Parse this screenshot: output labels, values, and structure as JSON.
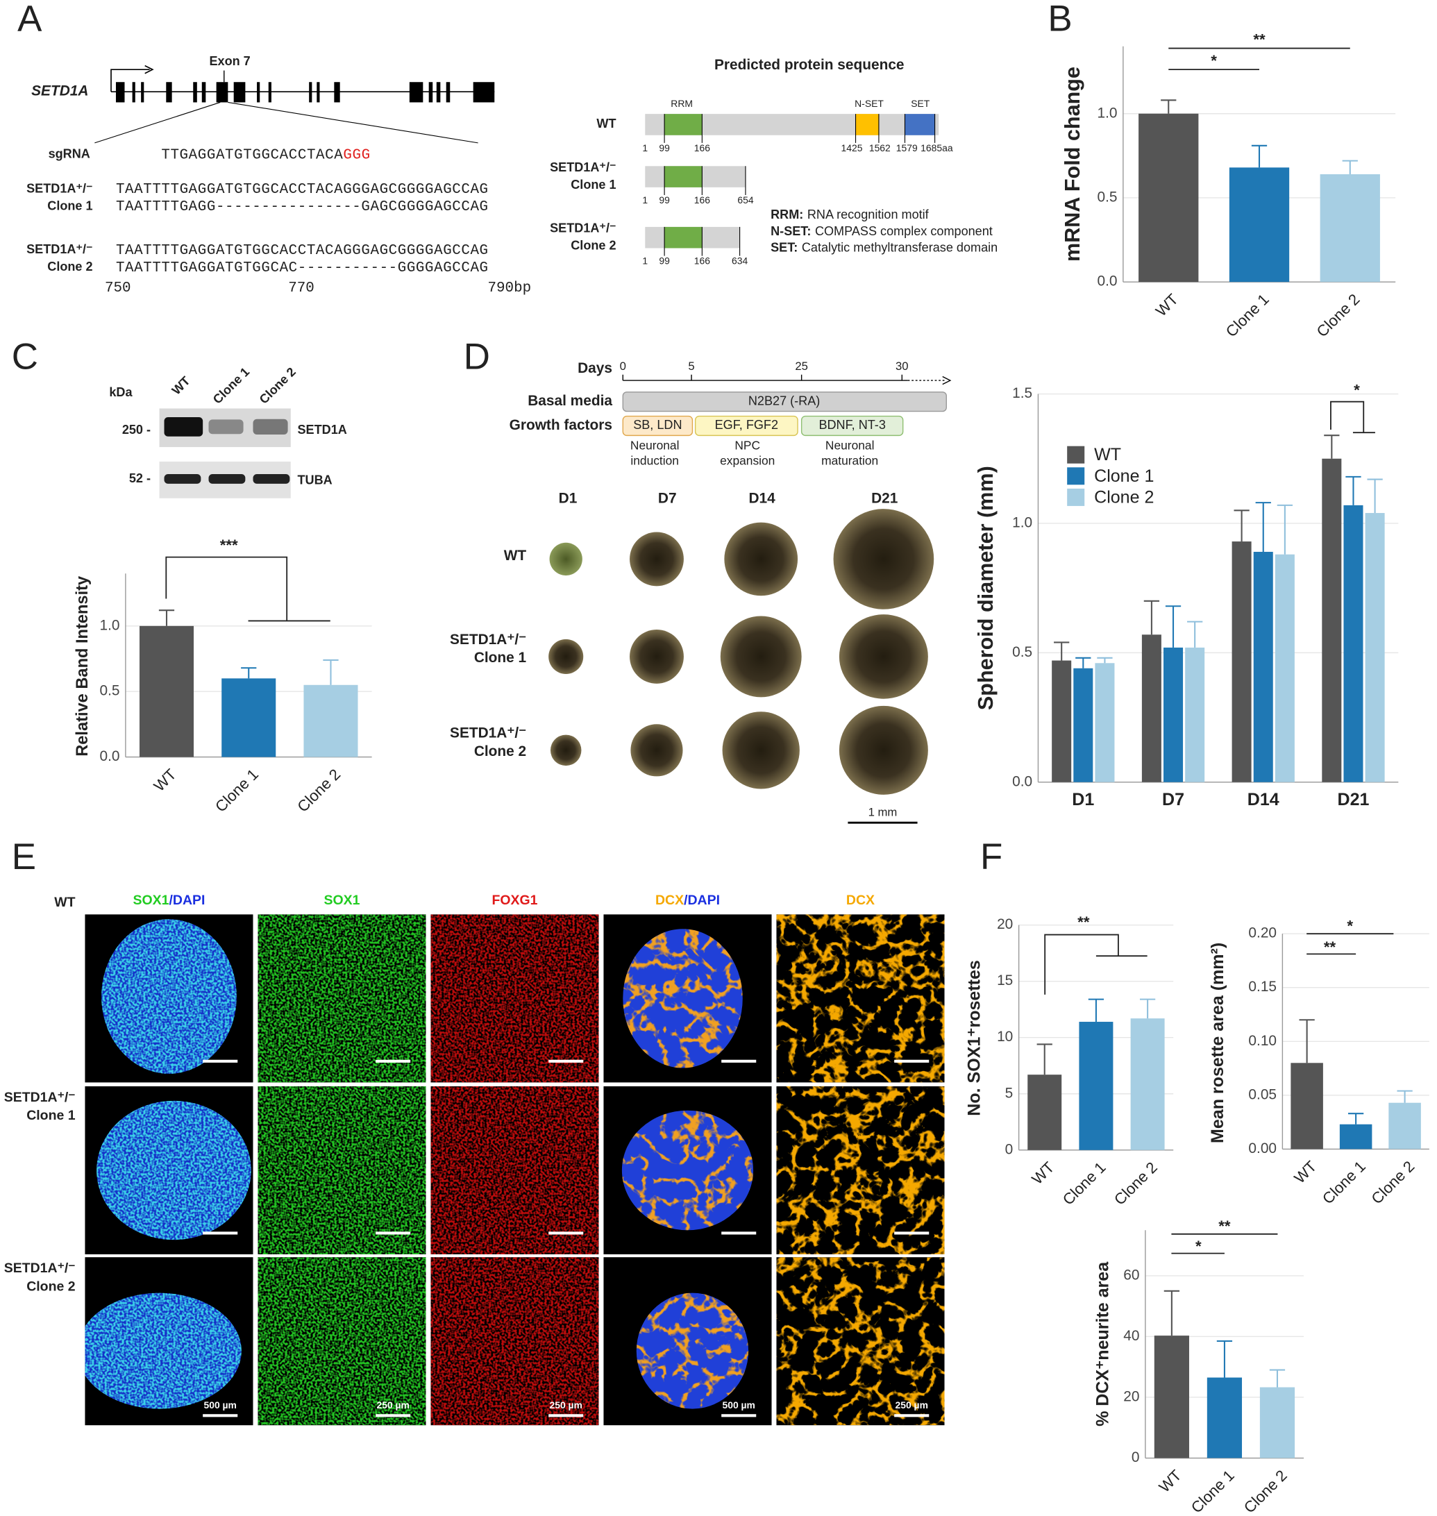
{
  "panel_labels": [
    "A",
    "B",
    "C",
    "D",
    "E",
    "F"
  ],
  "panel_a": {
    "gene": "SETD1A",
    "exon_label": "Exon 7",
    "sgrna_label": "sgRNA",
    "sgrna_seq": "TTGAGGATGTGGCACCTACA",
    "pam": "GGG",
    "clones": [
      {
        "label": [
          "SETD1A⁺/⁻",
          "Clone 1"
        ],
        "sequences": [
          "TAATTTTGAGGATGTGGCACCTACAGGGAGCGGGGAGCCAG",
          "TAATTTTGAGG----------------GAGCGGGGAGCCAG"
        ]
      },
      {
        "label": [
          "SETD1A⁺/⁻",
          "Clone 2"
        ],
        "sequences": [
          "TAATTTTGAGGATGTGGCACCTACAGGGAGCGGGGAGCCAG",
          "TAATTTTGAGGATGTGGCAC-----------GGGGAGCCAG"
        ]
      }
    ],
    "ruler": [
      "750",
      "770",
      "790bp"
    ]
  },
  "panel_a_protein": {
    "title": "Predicted protein sequence",
    "domains": [
      "RRM",
      "N-SET",
      "SET"
    ],
    "rows": [
      {
        "label": [
          "WT"
        ],
        "numbers": [
          "1",
          "99",
          "166",
          "1425",
          "1562",
          "1579",
          "1685aa"
        ]
      },
      {
        "label": [
          "SETD1A⁺/⁻",
          "Clone 1"
        ],
        "numbers": [
          "1",
          "99",
          "166",
          "654"
        ]
      },
      {
        "label": [
          "SETD1A⁺/⁻",
          "Clone 2"
        ],
        "numbers": [
          "1",
          "99",
          "166",
          "634"
        ]
      }
    ],
    "legend": [
      {
        "key": "RRM:",
        "text": "RNA recognition motif"
      },
      {
        "key": "N-SET:",
        "text": "COMPASS complex component"
      },
      {
        "key": "SET:",
        "text": "Catalytic methyltransferase domain"
      }
    ]
  },
  "panel_c_blot": {
    "unit": "kDa",
    "lanes": [
      "WT",
      "Clone 1",
      "Clone 2"
    ],
    "markers": [
      "250 -",
      "52 -"
    ],
    "proteins": [
      "SETD1A",
      "TUBA"
    ]
  },
  "panel_d_protocol": {
    "days_label": "Days",
    "days": [
      "0",
      "5",
      "25",
      "30"
    ],
    "basal_label": "Basal media",
    "basal": "N2B27 (-RA)",
    "gf_label": "Growth factors",
    "factors": [
      "SB, LDN",
      "EGF, FGF2",
      "BDNF, NT-3"
    ],
    "stages": [
      [
        "Neuronal",
        "induction"
      ],
      [
        "NPC",
        "expansion"
      ],
      [
        "Neuronal",
        "maturation"
      ]
    ],
    "timepoints": [
      "D1",
      "D7",
      "D14",
      "D21"
    ],
    "rows": [
      [
        "WT"
      ],
      [
        "SETD1A⁺/⁻",
        "Clone 1"
      ],
      [
        "SETD1A⁺/⁻",
        "Clone 2"
      ]
    ],
    "scale": "1 mm"
  },
  "panel_e": {
    "columns": [
      [
        "SOX1",
        "/DAPI"
      ],
      [
        "SOX1"
      ],
      [
        "FOXG1"
      ],
      [
        "DCX",
        "/DAPI"
      ],
      [
        "DCX"
      ]
    ],
    "rows": [
      [
        "WT"
      ],
      [
        "SETD1A⁺/⁻",
        "Clone 1"
      ],
      [
        "SETD1A⁺/⁻",
        "Clone 2"
      ]
    ],
    "scales": [
      "500 µm",
      "250 µm",
      "250 µm",
      "500 µm",
      "250 µm"
    ]
  },
  "chart_data": [
    {
      "type": "bar",
      "y_label": "mRNA Fold change",
      "categories": [
        "WT",
        "Clone 1",
        "Clone 2"
      ],
      "values": [
        1.0,
        0.68,
        0.64
      ],
      "errors": [
        0.08,
        0.13,
        0.08
      ],
      "colors": [
        "#555555",
        "#1f78b4",
        "#a6cee3"
      ],
      "ylim": [
        0,
        1.4
      ],
      "yticks": [
        {
          "value": 0,
          "label": "0.0"
        },
        {
          "value": 0.5,
          "label": "0.5"
        },
        {
          "value": 1,
          "label": "1.0"
        }
      ],
      "grid": true,
      "significance": [
        "*",
        "**"
      ]
    },
    {
      "type": "bar",
      "y_label": "Relative Band Intensity",
      "categories": [
        "WT",
        "Clone 1",
        "Clone 2"
      ],
      "values": [
        1.0,
        0.6,
        0.55
      ],
      "errors": [
        0.12,
        0.08,
        0.19
      ],
      "colors": [
        "#555555",
        "#1f78b4",
        "#a6cee3"
      ],
      "ylim": [
        0,
        1.4
      ],
      "yticks": [
        {
          "value": 0,
          "label": "0.0"
        },
        {
          "value": 0.5,
          "label": "0.5"
        },
        {
          "value": 1,
          "label": "1.0"
        }
      ],
      "grid": true,
      "significance": [
        "***"
      ]
    },
    {
      "type": "bar",
      "y_label": "Spheroid diameter (mm)",
      "categories": [
        "D1",
        "D7",
        "D14",
        "D21"
      ],
      "legend": "upper left",
      "series": [
        {
          "name": "WT",
          "color": "#555555",
          "values": [
            0.47,
            0.57,
            0.93,
            1.25
          ],
          "errors": [
            0.07,
            0.13,
            0.12,
            0.09
          ]
        },
        {
          "name": "Clone 1",
          "color": "#1f78b4",
          "values": [
            0.44,
            0.52,
            0.89,
            1.07
          ],
          "errors": [
            0.04,
            0.16,
            0.19,
            0.11
          ]
        },
        {
          "name": "Clone 2",
          "color": "#a6cee3",
          "values": [
            0.46,
            0.52,
            0.88,
            1.04
          ],
          "errors": [
            0.02,
            0.1,
            0.19,
            0.13
          ]
        }
      ],
      "ylim": [
        0,
        1.5
      ],
      "yticks": [
        {
          "value": 0,
          "label": "0.0"
        },
        {
          "value": 0.5,
          "label": "0.5"
        },
        {
          "value": 1,
          "label": "1.0"
        },
        {
          "value": 1.5,
          "label": "1.5"
        }
      ],
      "grid": true,
      "significance": [
        "*"
      ]
    },
    {
      "type": "bar",
      "y_label": "No. SOX1⁺rosettes",
      "categories": [
        "WT",
        "Clone 1",
        "Clone 2"
      ],
      "values": [
        6.7,
        11.4,
        11.7
      ],
      "errors": [
        2.7,
        2.0,
        1.7
      ],
      "colors": [
        "#555555",
        "#1f78b4",
        "#a6cee3"
      ],
      "ylim": [
        0,
        20
      ],
      "yticks": [
        0,
        5,
        10,
        15,
        20
      ],
      "grid": true,
      "significance": [
        "**"
      ]
    },
    {
      "type": "bar",
      "y_label": "Mean rosette area (mm²)",
      "categories": [
        "WT",
        "Clone 1",
        "Clone 2"
      ],
      "values": [
        0.08,
        0.023,
        0.043
      ],
      "errors": [
        0.04,
        0.01,
        0.011
      ],
      "colors": [
        "#555555",
        "#1f78b4",
        "#a6cee3"
      ],
      "ylim": [
        0,
        0.2
      ],
      "yticks": [
        {
          "value": 0,
          "label": "0.00"
        },
        {
          "value": 0.05,
          "label": "0.05"
        },
        {
          "value": 0.1,
          "label": "0.10"
        },
        {
          "value": 0.15,
          "label": "0.15"
        },
        {
          "value": 0.2,
          "label": "0.20"
        }
      ],
      "grid": true,
      "significance": [
        "**",
        "*"
      ]
    },
    {
      "type": "bar",
      "y_label": "% DCX⁺neurite area",
      "categories": [
        "WT",
        "Clone 1",
        "Clone 2"
      ],
      "values": [
        40.3,
        26.5,
        23.3
      ],
      "errors": [
        14.7,
        12.0,
        5.7
      ],
      "colors": [
        "#555555",
        "#1f78b4",
        "#a6cee3"
      ],
      "ylim": [
        0,
        75
      ],
      "yticks": [
        0,
        20,
        40,
        60
      ],
      "grid": true,
      "significance": [
        "*",
        "**"
      ]
    }
  ]
}
